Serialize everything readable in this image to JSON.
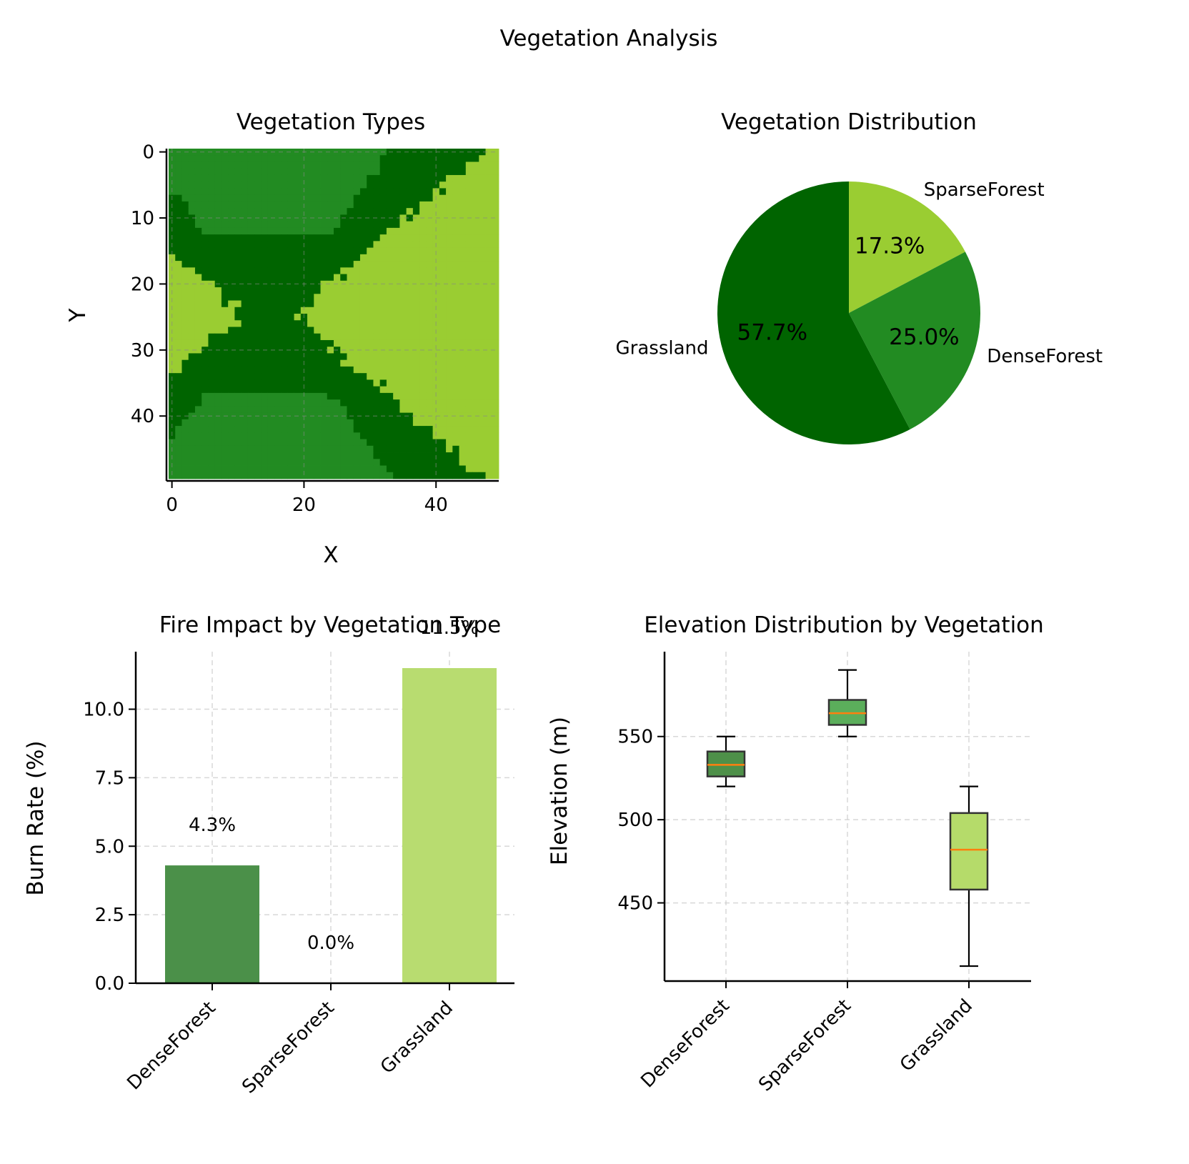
{
  "figure": {
    "title": "Vegetation Analysis"
  },
  "colors": {
    "dense": "#006400",
    "forest": "#228B22",
    "grass": "#9ACD32",
    "bar_dense": "#4B9049",
    "bar_grass": "#B8DC70",
    "box_dense": "#4E9049",
    "box_sparse": "#5BAE5B",
    "box_grass": "#B5DB6A",
    "median": "#FF7F0E",
    "grid": "#cccccc"
  },
  "chart_data": [
    {
      "type": "heatmap",
      "title": "Vegetation Types",
      "xlabel": "X",
      "ylabel": "Y",
      "grid_size": [
        50,
        50
      ],
      "xticks": [
        0,
        20,
        40
      ],
      "yticks": [
        0,
        10,
        20,
        30,
        40
      ],
      "grid": true,
      "regions": [
        {
          "category": "Grassland",
          "description": "background field, right half and middle band"
        },
        {
          "category": "DenseForest",
          "description": "two hourglass lobes, top and bottom left"
        },
        {
          "category": "SparseForest",
          "description": "cores of the two lobes"
        }
      ]
    },
    {
      "type": "pie",
      "title": "Vegetation Distribution",
      "labels": [
        "SparseForest",
        "DenseForest",
        "Grassland"
      ],
      "values": [
        17.3,
        25.0,
        57.7
      ],
      "value_labels": [
        "17.3%",
        "25.0%",
        "57.7%"
      ],
      "colors": [
        "#9ACD32",
        "#228B22",
        "#006400"
      ],
      "start_angle_deg": 90,
      "direction": "clockwise"
    },
    {
      "type": "bar",
      "title": "Fire Impact by Vegetation Type",
      "categories": [
        "DenseForest",
        "SparseForest",
        "Grassland"
      ],
      "values": [
        4.3,
        0.0,
        11.5
      ],
      "value_labels": [
        "4.3%",
        "0.0%",
        "11.5%"
      ],
      "ylabel": "Burn Rate (%)",
      "ylim": [
        0,
        12.1
      ],
      "yticks": [
        "0.0",
        "2.5",
        "5.0",
        "7.5",
        "10.0"
      ],
      "grid": true
    },
    {
      "type": "box",
      "title": "Elevation Distribution by Vegetation",
      "categories": [
        "DenseForest",
        "SparseForest",
        "Grassland"
      ],
      "ylabel": "Elevation (m)",
      "ylim": [
        403,
        601
      ],
      "yticks": [
        450,
        500,
        550
      ],
      "grid": true,
      "boxes": [
        {
          "name": "DenseForest",
          "whisker_low": 520,
          "q1": 526,
          "median": 533,
          "q3": 541,
          "whisker_high": 550
        },
        {
          "name": "SparseForest",
          "whisker_low": 550,
          "q1": 557,
          "median": 564,
          "q3": 572,
          "whisker_high": 590
        },
        {
          "name": "Grassland",
          "whisker_low": 412,
          "q1": 458,
          "median": 482,
          "q3": 504,
          "whisker_high": 520
        }
      ]
    }
  ]
}
